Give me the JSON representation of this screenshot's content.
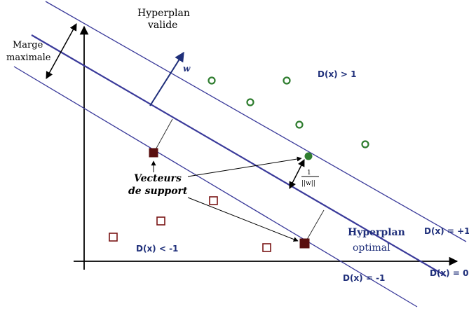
{
  "labels": {
    "hyperplan_valide_line1": "Hyperplan",
    "hyperplan_valide_line2": "valide",
    "marge_line1": "Marge",
    "marge_line2": "maximale",
    "w": "w",
    "d_gt_1": "D(x) > 1",
    "d_lt_minus1": "D(x) < -1",
    "vecteurs_line1": "Vecteurs",
    "vecteurs_line2": "de support",
    "frac_numerator": "1",
    "frac_denominator": "||w||",
    "hyperplan_optimal_line1": "Hyperplan",
    "hyperplan_optimal_line2": "optimal",
    "d_eq_plus1": "D(x) = +1",
    "d_eq_0": "D(x) = 0",
    "d_eq_minus1": "D(x) = -1"
  },
  "colors": {
    "hyperplane_line": "#3a3a9a",
    "positive_class": "#2f7d2f",
    "negative_class": "#7a1515",
    "axis": "#000000",
    "label_blue": "#1f2f7a"
  }
}
